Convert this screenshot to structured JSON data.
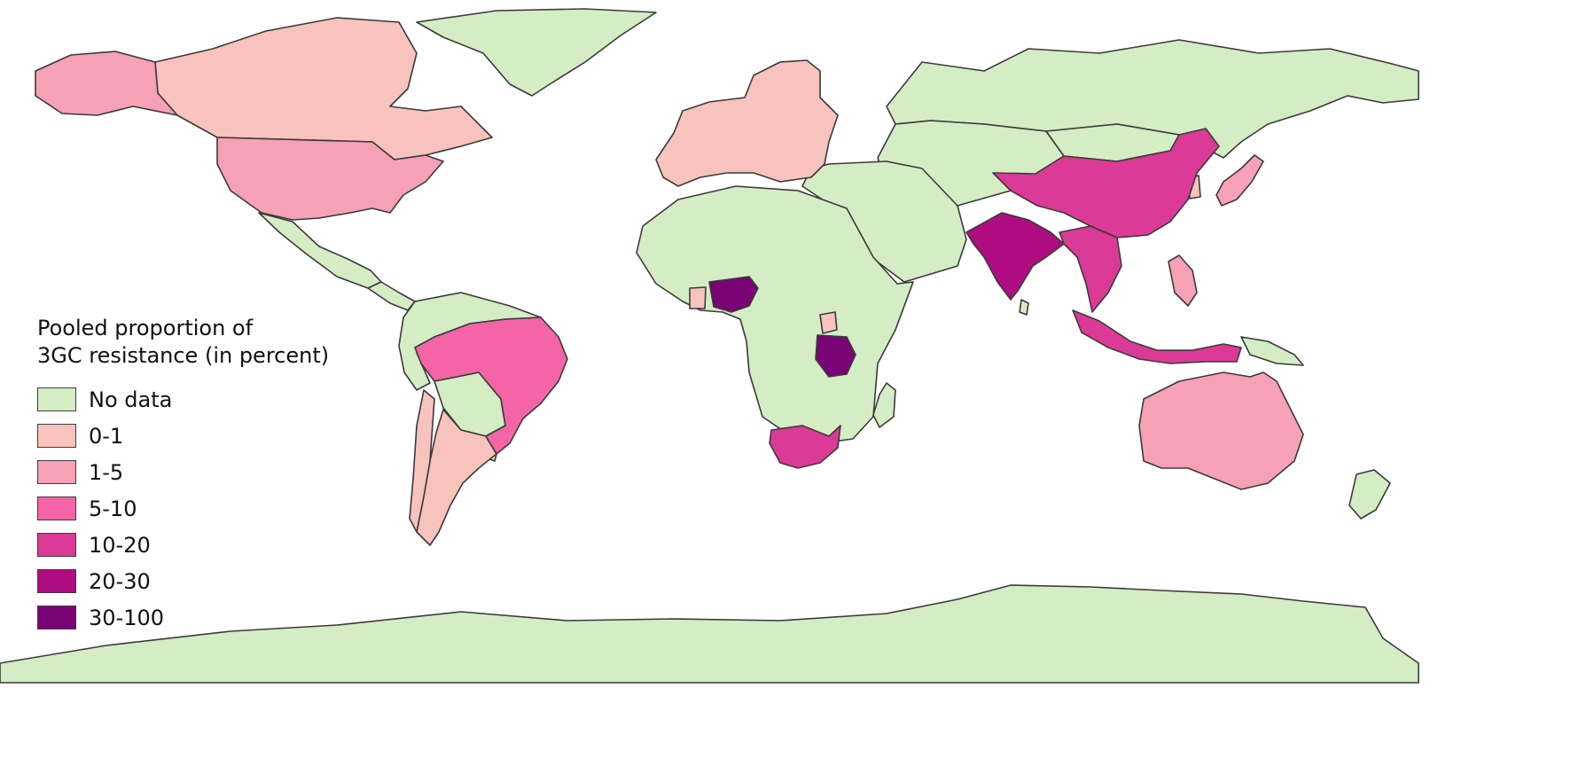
{
  "legend": {
    "title_line1": "Pooled proportion of",
    "title_line2": "3GC resistance (in percent)",
    "items": [
      {
        "label": "No data",
        "color": "#d4edc4"
      },
      {
        "label": "0-1",
        "color": "#f8c3bd"
      },
      {
        "label": "1-5",
        "color": "#f6a1b5"
      },
      {
        "label": "5-10",
        "color": "#f365a7"
      },
      {
        "label": "10-20",
        "color": "#dc3a97"
      },
      {
        "label": "20-30",
        "color": "#b00c82"
      },
      {
        "label": "30-100",
        "color": "#7a0376"
      }
    ]
  },
  "map": {
    "stroke_color": "#3a3a3a",
    "ocean_color": "#ffffff",
    "regions": [
      {
        "name": "Greenland",
        "category": "No data"
      },
      {
        "name": "Russia",
        "category": "No data"
      },
      {
        "name": "Central Asia",
        "category": "No data"
      },
      {
        "name": "Mongolia",
        "category": "No data"
      },
      {
        "name": "Middle East",
        "category": "No data"
      },
      {
        "name": "Africa (rest)",
        "category": "No data"
      },
      {
        "name": "Madagascar",
        "category": "No data"
      },
      {
        "name": "Mexico",
        "category": "No data"
      },
      {
        "name": "Central America",
        "category": "No data"
      },
      {
        "name": "Northern South America",
        "category": "No data"
      },
      {
        "name": "Paraguay/Bolivia",
        "category": "No data"
      },
      {
        "name": "Uruguay",
        "category": "No data"
      },
      {
        "name": "Papua New Guinea",
        "category": "No data"
      },
      {
        "name": "New Zealand",
        "category": "No data"
      },
      {
        "name": "Sri Lanka",
        "category": "No data"
      },
      {
        "name": "Antarctica",
        "category": "No data"
      },
      {
        "name": "Canada",
        "category": "0-1"
      },
      {
        "name": "Argentina",
        "category": "0-1"
      },
      {
        "name": "Chile",
        "category": "0-1"
      },
      {
        "name": "Europe",
        "category": "0-1"
      },
      {
        "name": "Uganda",
        "category": "0-1"
      },
      {
        "name": "Ghana",
        "category": "0-1"
      },
      {
        "name": "Korea",
        "category": "0-1"
      },
      {
        "name": "Alaska",
        "category": "1-5"
      },
      {
        "name": "United States",
        "category": "1-5"
      },
      {
        "name": "Japan",
        "category": "1-5"
      },
      {
        "name": "Philippines",
        "category": "1-5"
      },
      {
        "name": "Australia",
        "category": "1-5"
      },
      {
        "name": "Brazil",
        "category": "5-10"
      },
      {
        "name": "China",
        "category": "10-20"
      },
      {
        "name": "Southeast Asia",
        "category": "10-20"
      },
      {
        "name": "Indonesia",
        "category": "10-20"
      },
      {
        "name": "South Africa",
        "category": "10-20"
      },
      {
        "name": "India",
        "category": "20-30"
      },
      {
        "name": "Nigeria",
        "category": "30-100"
      },
      {
        "name": "Tanzania",
        "category": "30-100"
      }
    ]
  }
}
